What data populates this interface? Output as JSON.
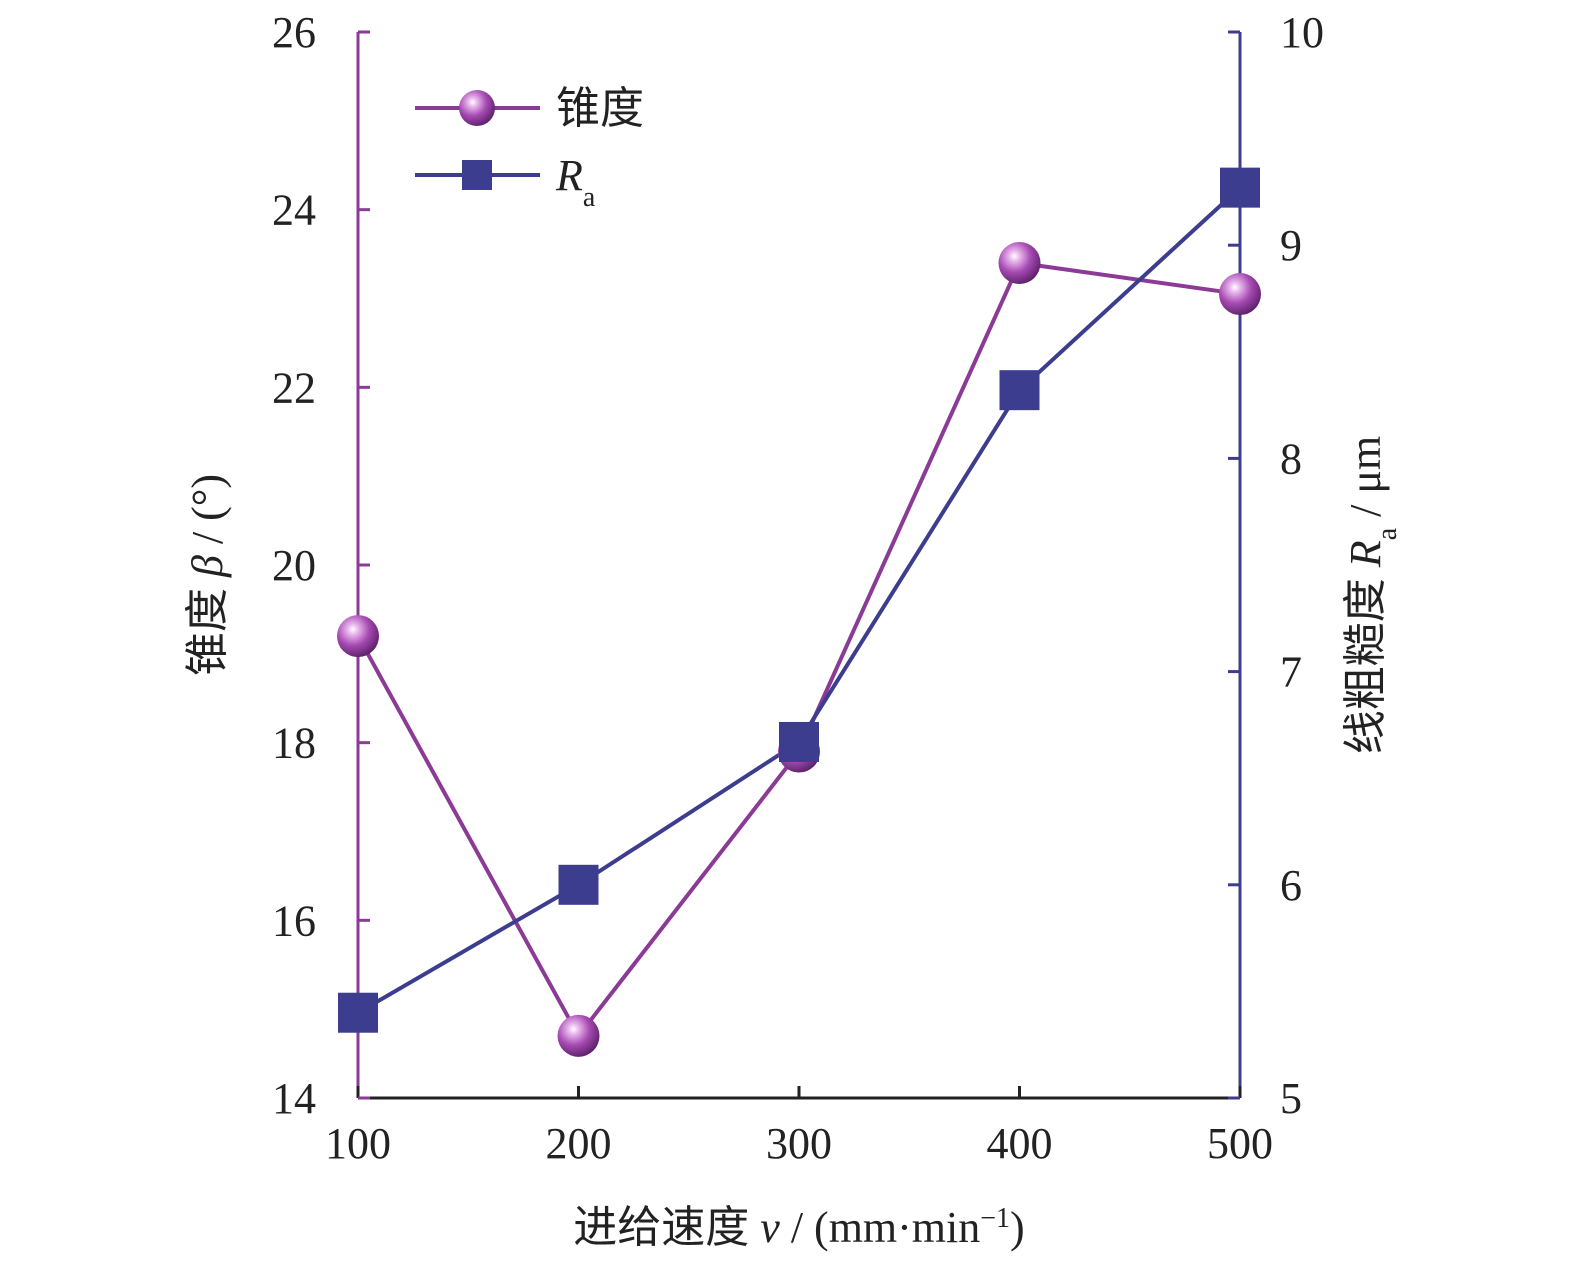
{
  "chart_data": {
    "type": "line",
    "x": [
      100,
      200,
      300,
      400,
      500
    ],
    "xlim": [
      100,
      500
    ],
    "x_ticks": [
      "100",
      "200",
      "300",
      "400",
      "500"
    ],
    "xlabel": {
      "prefix": "进给速度 ",
      "var": "v",
      "suffix": " / (mm·min",
      "sup": "−1",
      "end": ")"
    },
    "y_left": {
      "label": {
        "prefix": "锥度 ",
        "var": "β",
        "suffix": " / (°)"
      },
      "ylim": [
        14,
        26
      ],
      "ticks": [
        "14",
        "16",
        "18",
        "20",
        "22",
        "24",
        "26"
      ],
      "color": "#8b3a96"
    },
    "y_right": {
      "label": {
        "prefix": "线粗糙度 ",
        "var": "R",
        "sub": "a",
        "suffix": " / μm"
      },
      "ylim": [
        5,
        10
      ],
      "ticks": [
        "5",
        "6",
        "7",
        "8",
        "9",
        "10"
      ],
      "color": "#3d3d8f"
    },
    "series": [
      {
        "name": "锥度",
        "axis": "left",
        "marker": "sphere",
        "color": "#8b3a96",
        "values": [
          19.2,
          14.7,
          17.9,
          23.4,
          23.05
        ]
      },
      {
        "name": "R",
        "name_sub": "a",
        "axis": "right",
        "marker": "square",
        "color": "#3d3d8f",
        "values": [
          5.4,
          6.0,
          6.67,
          8.32,
          9.27
        ]
      }
    ],
    "legend": "top-left",
    "grid": false
  }
}
